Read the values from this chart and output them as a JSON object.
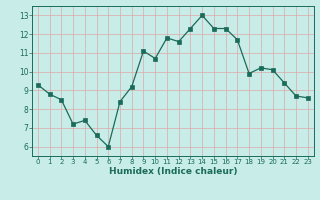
{
  "x": [
    0,
    1,
    2,
    3,
    4,
    5,
    6,
    7,
    8,
    9,
    10,
    11,
    12,
    13,
    14,
    15,
    16,
    17,
    18,
    19,
    20,
    21,
    22,
    23
  ],
  "y": [
    9.3,
    8.8,
    8.5,
    7.2,
    7.4,
    6.6,
    6.0,
    8.4,
    9.2,
    11.1,
    10.7,
    11.8,
    11.6,
    12.3,
    13.0,
    12.3,
    12.3,
    11.7,
    9.9,
    10.2,
    10.1,
    9.4,
    8.7,
    8.6
  ],
  "xlabel": "Humidex (Indice chaleur)",
  "ylim": [
    5.5,
    13.5
  ],
  "xlim": [
    -0.5,
    23.5
  ],
  "yticks": [
    6,
    7,
    8,
    9,
    10,
    11,
    12,
    13
  ],
  "xticks": [
    0,
    1,
    2,
    3,
    4,
    5,
    6,
    7,
    8,
    9,
    10,
    11,
    12,
    13,
    14,
    15,
    16,
    17,
    18,
    19,
    20,
    21,
    22,
    23
  ],
  "line_color": "#1a6b5a",
  "marker_color": "#1a6b5a",
  "bg_color": "#c8ece8",
  "grid_color": "#dda8a8",
  "axis_label_color": "#1a6b5a",
  "tick_color": "#1a6b5a"
}
